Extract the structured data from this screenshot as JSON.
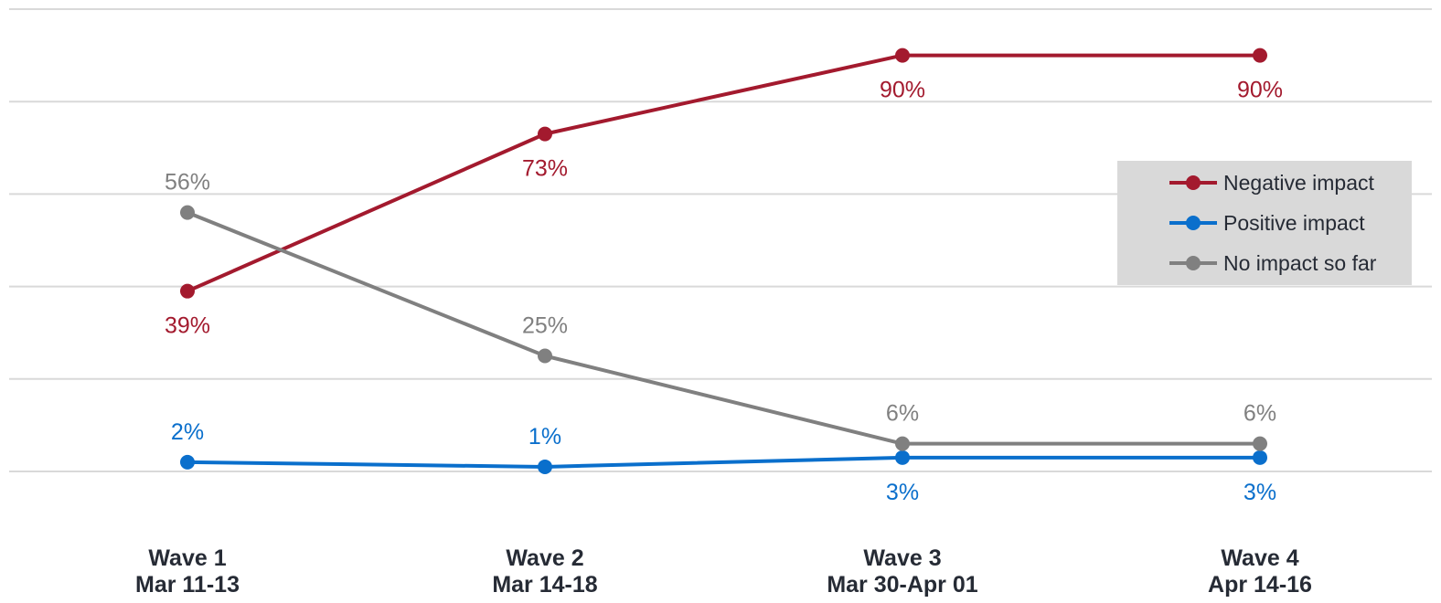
{
  "chart_data": {
    "type": "line",
    "categories": [
      {
        "line1": "Wave 1",
        "line2": "Mar 11-13"
      },
      {
        "line1": "Wave 2",
        "line2": "Mar 14-18"
      },
      {
        "line1": "Wave 3",
        "line2": "Mar 30-Apr 01"
      },
      {
        "line1": "Wave 4",
        "line2": "Apr 14-16"
      }
    ],
    "series": [
      {
        "name": "Negative impact",
        "color": "#a31a2e",
        "values": [
          39,
          73,
          90,
          90
        ],
        "labels": [
          "39%",
          "73%",
          "90%",
          "90%"
        ],
        "label_position": [
          "below",
          "below",
          "below",
          "below"
        ]
      },
      {
        "name": "Positive impact",
        "color": "#0a6fcc",
        "values": [
          2,
          1,
          3,
          3
        ],
        "labels": [
          "2%",
          "1%",
          "3%",
          "3%"
        ],
        "label_position": [
          "above",
          "above",
          "below",
          "below"
        ]
      },
      {
        "name": "No impact so far",
        "color": "#808080",
        "values": [
          56,
          25,
          6,
          6
        ],
        "labels": [
          "56%",
          "25%",
          "6%",
          "6%"
        ],
        "label_position": [
          "above",
          "above",
          "above",
          "above"
        ]
      }
    ],
    "ylim": [
      0,
      100
    ],
    "y_gridlines": [
      0,
      20,
      40,
      60,
      80,
      100
    ],
    "grid": true,
    "y_axis_labels_visible": false,
    "legend": {
      "placement": "right",
      "background": "#d9d9d9"
    }
  }
}
